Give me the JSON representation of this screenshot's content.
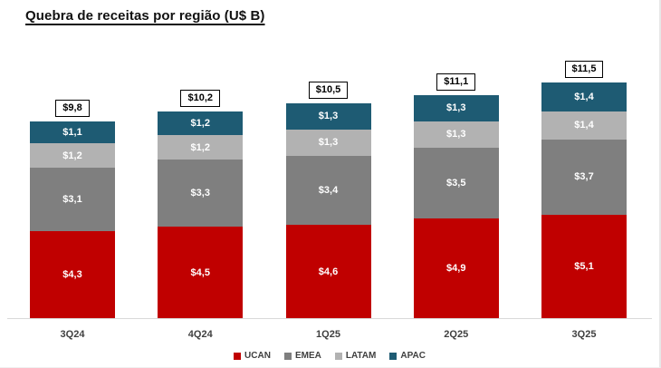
{
  "chart_data": {
    "type": "bar",
    "stacked": true,
    "title": "Quebra de receitas por região (U$ B)",
    "categories": [
      "3Q24",
      "4Q24",
      "1Q25",
      "2Q25",
      "3Q25"
    ],
    "series": [
      {
        "name": "UCAN",
        "color": "#C00000",
        "values": [
          4.3,
          4.5,
          4.6,
          4.9,
          5.1
        ],
        "labels": [
          "$4,3",
          "$4,5",
          "$4,6",
          "$4,9",
          "$5,1"
        ]
      },
      {
        "name": "EMEA",
        "color": "#7F7F7F",
        "values": [
          3.1,
          3.3,
          3.4,
          3.5,
          3.7
        ],
        "labels": [
          "$3,1",
          "$3,3",
          "$3,4",
          "$3,5",
          "$3,7"
        ]
      },
      {
        "name": "LATAM",
        "color": "#B2B2B2",
        "values": [
          1.2,
          1.2,
          1.3,
          1.3,
          1.4
        ],
        "labels": [
          "$1,2",
          "$1,2",
          "$1,3",
          "$1,3",
          "$1,4"
        ]
      },
      {
        "name": "APAC",
        "color": "#1E5B73",
        "values": [
          1.1,
          1.2,
          1.3,
          1.3,
          1.4
        ],
        "labels": [
          "$1,1",
          "$1,2",
          "$1,3",
          "$1,3",
          "$1,4"
        ]
      }
    ],
    "totals": [
      "$9,8",
      "$10,2",
      "$10,5",
      "$11,1",
      "$11,5"
    ],
    "legend": {
      "position": "bottom",
      "entries": [
        "UCAN",
        "EMEA",
        "LATAM",
        "APAC"
      ]
    },
    "ylim": [
      0,
      12
    ],
    "grid": false
  },
  "style_colors": {
    "axis_line": "#D9D9D9",
    "category_label": "#404040",
    "segment_label": "#FFFFFF",
    "total_label": "#000000",
    "background": "#FFFFFF"
  }
}
